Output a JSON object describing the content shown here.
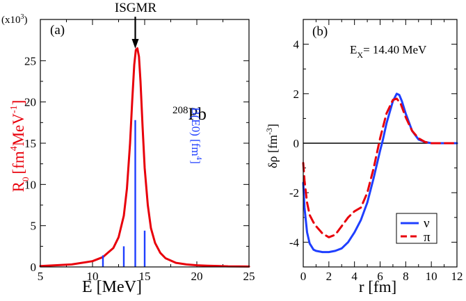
{
  "chart_data": [
    {
      "panel": "(a)",
      "type": "line",
      "title": "ISGMR",
      "xlabel": "E  [MeV]",
      "ylabel": {
        "base": "R",
        "sub": "0",
        "text": "[fm",
        "sup": "4",
        "unit": "MeV",
        "unit_sup": "-1",
        "close": "]"
      },
      "ylabel2": {
        "text": "B(E0) [fm",
        "sup": "4",
        "close": "]"
      },
      "yscale_label": {
        "text": "(x10",
        "sup": "3",
        "close": ")"
      },
      "annotation": {
        "sup": "208",
        "text": "Pb"
      },
      "xlim": [
        5,
        25
      ],
      "ylim": [
        0,
        30
      ],
      "xticks": [
        5,
        10,
        15,
        20,
        25
      ],
      "yticks": [
        0,
        5,
        10,
        15,
        20,
        25
      ],
      "arrow_x": 14.1,
      "series": [
        {
          "color": "#e8000b",
          "x": [
            5,
            8,
            10,
            11,
            12,
            12.5,
            13,
            13.3,
            13.6,
            13.8,
            14.0,
            14.15,
            14.3,
            14.45,
            14.6,
            14.8,
            15.0,
            15.3,
            15.6,
            16,
            16.5,
            17,
            18,
            19,
            20,
            21,
            22,
            23,
            25
          ],
          "y": [
            0.1,
            0.3,
            0.7,
            1.2,
            2.3,
            3.6,
            6.2,
            9.5,
            15.0,
            20.0,
            24.5,
            26.3,
            26.5,
            25.5,
            22.5,
            17.0,
            12.0,
            7.5,
            4.7,
            2.9,
            1.7,
            1.05,
            0.5,
            0.3,
            0.2,
            0.15,
            0.12,
            0.08,
            0.05
          ]
        },
        {
          "type": "bar",
          "color": "#1f3fff",
          "x": [
            11.0,
            13.0,
            14.1,
            15.0
          ],
          "values": [
            1.4,
            2.5,
            17.8,
            4.4
          ]
        }
      ]
    },
    {
      "panel": "(b)",
      "type": "line",
      "annotation": {
        "text": "E",
        "sub": "X",
        "value": "= 14.40 MeV"
      },
      "xlabel": "r [fm]",
      "ylabel": {
        "text": "δρ [fm",
        "sup": "-3",
        "close": "]"
      },
      "xlim": [
        0,
        12
      ],
      "ylim": [
        -5,
        5
      ],
      "xticks": [
        0,
        2,
        4,
        6,
        8,
        10,
        12
      ],
      "yticks": [
        -4,
        -2,
        0,
        2,
        4
      ],
      "legend": "lower-right",
      "series": [
        {
          "name": "ν",
          "color": "#1f3fff",
          "dash": "solid",
          "x": [
            0,
            0.1,
            0.3,
            0.5,
            0.8,
            1.0,
            1.5,
            2.0,
            2.5,
            3.0,
            3.5,
            4.0,
            4.5,
            5.0,
            5.5,
            6.0,
            6.2,
            6.5,
            7.0,
            7.3,
            7.5,
            7.7,
            8.0,
            8.5,
            9.0,
            9.5,
            10,
            11,
            12
          ],
          "y": [
            -1.6,
            -2.6,
            -3.6,
            -4.05,
            -4.3,
            -4.35,
            -4.4,
            -4.4,
            -4.35,
            -4.25,
            -4.0,
            -3.6,
            -3.1,
            -2.4,
            -1.4,
            -0.3,
            0.1,
            0.8,
            1.7,
            2.0,
            1.95,
            1.7,
            1.2,
            0.5,
            0.15,
            0.05,
            0.0,
            0.0,
            0.0
          ]
        },
        {
          "name": "π",
          "color": "#e8000b",
          "dash": "dashed",
          "x": [
            0,
            0.1,
            0.3,
            0.5,
            0.8,
            1.0,
            1.5,
            2.0,
            2.5,
            3.0,
            3.5,
            4.0,
            4.5,
            5.0,
            5.5,
            6.0,
            6.5,
            7.0,
            7.3,
            7.6,
            8.0,
            8.5,
            9.0,
            9.5,
            10,
            11,
            12
          ],
          "y": [
            -0.8,
            -1.5,
            -2.4,
            -2.9,
            -3.2,
            -3.35,
            -3.65,
            -3.8,
            -3.7,
            -3.35,
            -3.0,
            -2.75,
            -2.6,
            -2.0,
            -1.0,
            0.2,
            1.2,
            1.75,
            1.8,
            1.6,
            1.05,
            0.5,
            0.2,
            0.05,
            0.0,
            0.0,
            0.0
          ]
        }
      ]
    }
  ]
}
